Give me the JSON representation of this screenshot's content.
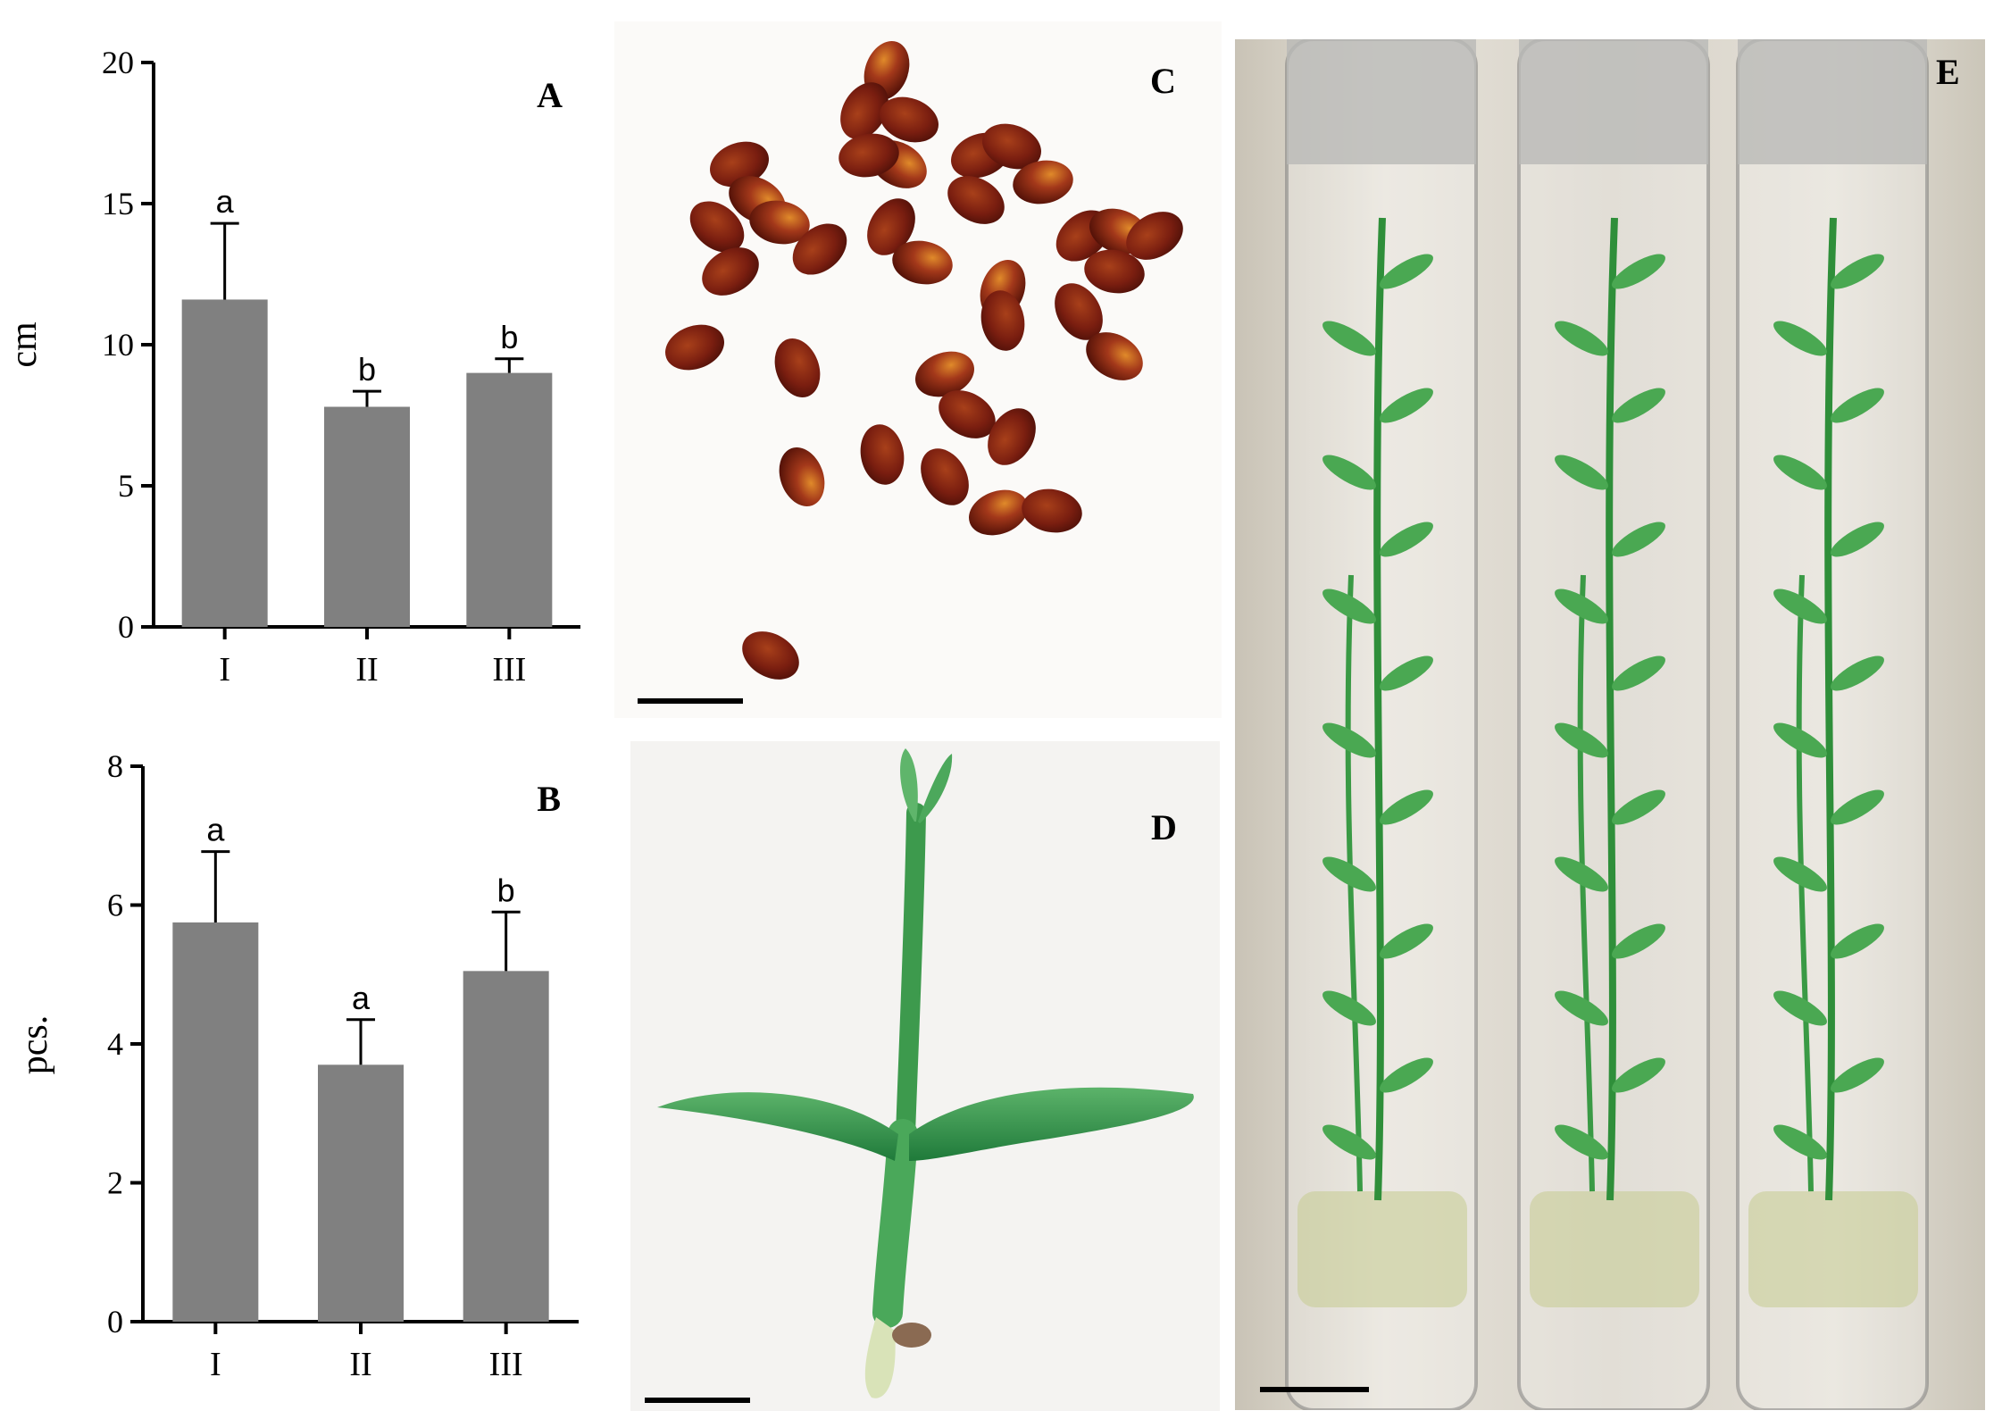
{
  "chart_data": [
    {
      "panel": "A",
      "type": "bar",
      "categories": [
        "I",
        "II",
        "III"
      ],
      "values": [
        11.6,
        7.8,
        9.0
      ],
      "errors": [
        2.7,
        0.55,
        0.5
      ],
      "significance": [
        "a",
        "b",
        "b"
      ],
      "ylabel": "cm",
      "xlabel": "",
      "ylim": [
        0,
        20
      ],
      "yticks": [
        0,
        5,
        10,
        15,
        20
      ],
      "bar_color": "#808080",
      "grid": false
    },
    {
      "panel": "B",
      "type": "bar",
      "categories": [
        "I",
        "II",
        "III"
      ],
      "values": [
        5.75,
        3.7,
        5.05
      ],
      "errors": [
        1.02,
        0.65,
        0.85
      ],
      "significance": [
        "a",
        "a",
        "b"
      ],
      "ylabel": "pcs.",
      "xlabel": "",
      "ylim": [
        0,
        8
      ],
      "yticks": [
        0,
        2,
        4,
        6,
        8
      ],
      "bar_color": "#808080",
      "grid": false
    }
  ],
  "photos": {
    "C": {
      "label": "C",
      "subject": "seeds",
      "scale_bar": true
    },
    "D": {
      "label": "D",
      "subject": "seedling",
      "scale_bar": true
    },
    "E": {
      "label": "E",
      "subject": "plantlets in test tubes",
      "scale_bar": true
    }
  }
}
